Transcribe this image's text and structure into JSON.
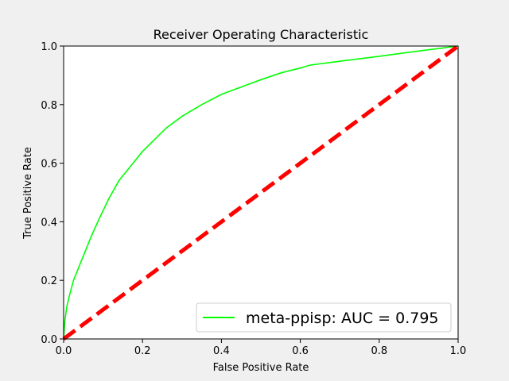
{
  "chart_data": {
    "type": "line",
    "title": "Receiver Operating Characteristic",
    "xlabel": "False Positive Rate",
    "ylabel": "True Positive Rate",
    "xlim": [
      0,
      1
    ],
    "ylim": [
      0,
      1
    ],
    "xticks": [
      0.0,
      0.2,
      0.4,
      0.6,
      0.8,
      1.0
    ],
    "yticks": [
      0.0,
      0.2,
      0.4,
      0.6,
      0.8,
      1.0
    ],
    "xtick_labels": [
      "0.0",
      "0.2",
      "0.4",
      "0.6",
      "0.8",
      "1.0"
    ],
    "ytick_labels": [
      "0.0",
      "0.2",
      "0.4",
      "0.6",
      "0.8",
      "1.0"
    ],
    "grid": false,
    "legend_position": "bottom-right",
    "series": [
      {
        "name": "meta-ppisp: AUC = 0.795",
        "color": "#00ff00",
        "x": [
          0,
          0.003,
          0.008,
          0.015,
          0.025,
          0.04,
          0.055,
          0.07,
          0.09,
          0.115,
          0.14,
          0.17,
          0.2,
          0.23,
          0.26,
          0.3,
          0.35,
          0.4,
          0.45,
          0.5,
          0.55,
          0.6,
          0.625,
          0.7,
          0.8,
          0.9,
          1.0
        ],
        "y": [
          0,
          0.06,
          0.11,
          0.15,
          0.2,
          0.25,
          0.3,
          0.35,
          0.41,
          0.48,
          0.54,
          0.59,
          0.64,
          0.68,
          0.72,
          0.76,
          0.8,
          0.835,
          0.86,
          0.885,
          0.908,
          0.925,
          0.935,
          0.948,
          0.965,
          0.983,
          1.0
        ]
      },
      {
        "name": "",
        "color": "#ff0000",
        "style": "dashed",
        "x": [
          0,
          1
        ],
        "y": [
          0,
          1
        ]
      }
    ]
  }
}
